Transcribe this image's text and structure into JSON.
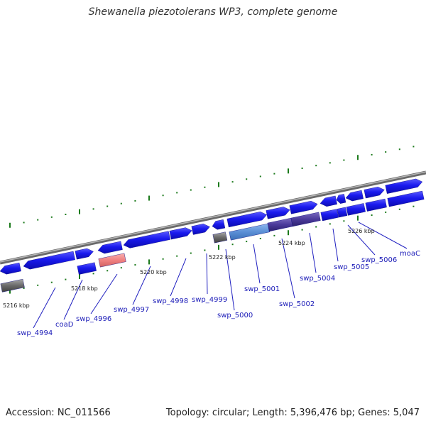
{
  "title": "Shewanella piezotolerans WP3, complete genome",
  "footer": {
    "accession": "Accession: NC_011566",
    "summary": "Topology: circular; Length: 5,396,476 bp; Genes: 5,047"
  },
  "scale_labels": [
    "5216 kbp",
    "5218 kbp",
    "5220 kbp",
    "5222 kbp",
    "5224 kbp",
    "5226 kbp"
  ],
  "gene_labels": [
    "swp_4994",
    "coaD",
    "swp_4996",
    "swp_4997",
    "swp_4998",
    "swp_4999",
    "swp_5000",
    "swp_5001",
    "swp_5002",
    "swp_5004",
    "swp_5005",
    "swp_5006",
    "moaC"
  ],
  "colors": {
    "cds": "#1a1aee",
    "trna": "#707070",
    "pseudo": "#f08080",
    "highlight_a": "#5b8fd6",
    "highlight_b": "#4a3a9a",
    "backbone": "#8a8a8a",
    "tick": "#1c7a1c",
    "label": "#1c1cb8"
  }
}
